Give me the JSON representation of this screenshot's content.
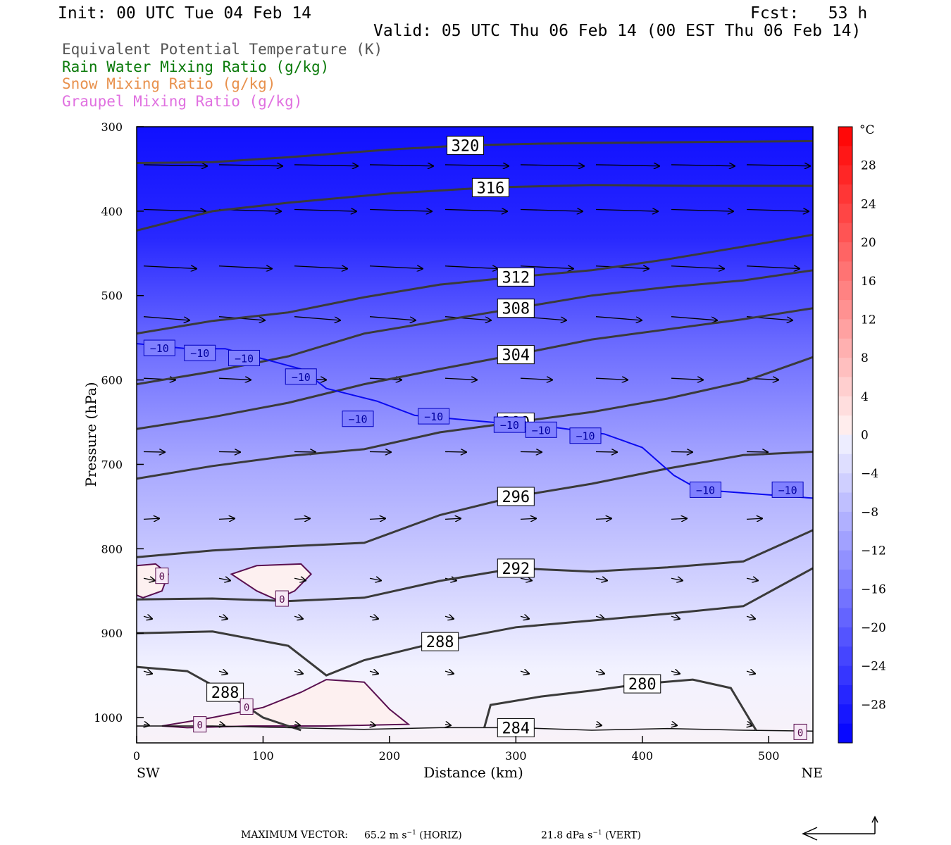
{
  "header": {
    "init": "Init: 00 UTC Tue 04 Feb 14",
    "fcst": "Fcst:   53 h",
    "valid": "Valid: 05 UTC Thu 06 Feb 14 (00 EST Thu 06 Feb 14)"
  },
  "legend": [
    {
      "label": "Equivalent Potential Temperature (K)",
      "color": "#555555"
    },
    {
      "label": "Rain Water Mixing Ratio (g/kg)",
      "color": "#0a7a0a"
    },
    {
      "label": "Snow Mixing Ratio (g/kg)",
      "color": "#e8914d"
    },
    {
      "label": "Graupel Mixing Ratio (g/kg)",
      "color": "#e070e0"
    }
  ],
  "chart_data": {
    "type": "contour",
    "xlabel": "Distance (km)",
    "ylabel": "Pressure (hPa)",
    "xlim": [
      0,
      535
    ],
    "ylim": [
      1030,
      300
    ],
    "x_ticks": [
      0,
      100,
      200,
      300,
      400,
      500
    ],
    "y_ticks": [
      300,
      400,
      500,
      600,
      700,
      800,
      900,
      1000
    ],
    "x_end_labels": {
      "left": "SW",
      "right": "NE"
    },
    "colorbar": {
      "unit": "°C",
      "tick_labels": [
        "28",
        "24",
        "20",
        "16",
        "12",
        "8",
        "4",
        "0",
        "−4",
        "−8",
        "−12",
        "−16",
        "−20",
        "−24",
        "−28"
      ],
      "tick_values": [
        28,
        24,
        20,
        16,
        12,
        8,
        4,
        0,
        -4,
        -8,
        -12,
        -16,
        -20,
        -24,
        -28
      ],
      "range": [
        -32,
        32
      ],
      "step": 2,
      "warm_color": "#ff0000",
      "cold_color": "#0000ff"
    },
    "theta_e_contours": [
      {
        "label": "320",
        "pts": [
          [
            0,
            343
          ],
          [
            60,
            342
          ],
          [
            120,
            336
          ],
          [
            200,
            327
          ],
          [
            260,
            322
          ],
          [
            320,
            320
          ],
          [
            380,
            319
          ],
          [
            450,
            318
          ],
          [
            535,
            317
          ]
        ]
      },
      {
        "label": "316",
        "pts": [
          [
            0,
            423
          ],
          [
            60,
            400
          ],
          [
            120,
            390
          ],
          [
            200,
            379
          ],
          [
            280,
            372
          ],
          [
            360,
            369
          ],
          [
            440,
            370
          ],
          [
            535,
            370
          ]
        ]
      },
      {
        "label": "312",
        "pts": [
          [
            0,
            545
          ],
          [
            60,
            530
          ],
          [
            120,
            520
          ],
          [
            180,
            502
          ],
          [
            240,
            487
          ],
          [
            300,
            478
          ],
          [
            360,
            470
          ],
          [
            420,
            457
          ],
          [
            480,
            442
          ],
          [
            535,
            428
          ]
        ]
      },
      {
        "label": "308",
        "pts": [
          [
            0,
            605
          ],
          [
            60,
            590
          ],
          [
            120,
            572
          ],
          [
            180,
            545
          ],
          [
            240,
            530
          ],
          [
            300,
            515
          ],
          [
            360,
            500
          ],
          [
            420,
            490
          ],
          [
            480,
            482
          ],
          [
            535,
            470
          ]
        ]
      },
      {
        "label": "304",
        "pts": [
          [
            0,
            658
          ],
          [
            60,
            644
          ],
          [
            120,
            627
          ],
          [
            180,
            605
          ],
          [
            240,
            587
          ],
          [
            300,
            570
          ],
          [
            360,
            552
          ],
          [
            420,
            540
          ],
          [
            480,
            528
          ],
          [
            535,
            515
          ]
        ]
      },
      {
        "label": "300",
        "pts": [
          [
            0,
            717
          ],
          [
            60,
            702
          ],
          [
            120,
            690
          ],
          [
            180,
            682
          ],
          [
            240,
            662
          ],
          [
            300,
            650
          ],
          [
            360,
            638
          ],
          [
            420,
            622
          ],
          [
            480,
            602
          ],
          [
            535,
            573
          ]
        ]
      },
      {
        "label": "296",
        "pts": [
          [
            0,
            810
          ],
          [
            60,
            802
          ],
          [
            120,
            797
          ],
          [
            180,
            793
          ],
          [
            240,
            760
          ],
          [
            300,
            738
          ],
          [
            360,
            723
          ],
          [
            420,
            705
          ],
          [
            480,
            689
          ],
          [
            535,
            685
          ]
        ]
      },
      {
        "label": "292",
        "pts": [
          [
            0,
            860
          ],
          [
            60,
            859
          ],
          [
            120,
            862
          ],
          [
            180,
            858
          ],
          [
            240,
            838
          ],
          [
            300,
            823
          ],
          [
            360,
            827
          ],
          [
            420,
            822
          ],
          [
            480,
            815
          ],
          [
            535,
            778
          ]
        ]
      },
      {
        "label": "288",
        "pts": [
          [
            0,
            900
          ],
          [
            60,
            898
          ],
          [
            120,
            915
          ],
          [
            150,
            950
          ],
          [
            180,
            932
          ],
          [
            240,
            910
          ],
          [
            300,
            893
          ],
          [
            360,
            885
          ],
          [
            420,
            877
          ],
          [
            480,
            868
          ],
          [
            535,
            823
          ]
        ]
      },
      {
        "label": "288",
        "pts": [
          [
            0,
            940
          ],
          [
            40,
            945
          ],
          [
            70,
            970
          ],
          [
            100,
            1000
          ],
          [
            130,
            1015
          ]
        ]
      },
      {
        "label": "284",
        "pts": [
          [
            0,
            1010
          ],
          [
            60,
            1010
          ],
          [
            120,
            1012
          ],
          [
            180,
            1014
          ],
          [
            240,
            1012
          ],
          [
            300,
            1012
          ],
          [
            360,
            1015
          ],
          [
            420,
            1013
          ],
          [
            480,
            1015
          ],
          [
            535,
            1016
          ]
        ]
      },
      {
        "label": "280",
        "pts": [
          [
            275,
            1012
          ],
          [
            280,
            985
          ],
          [
            320,
            975
          ],
          [
            360,
            968
          ],
          [
            400,
            960
          ],
          [
            440,
            955
          ],
          [
            470,
            965
          ],
          [
            490,
            1015
          ]
        ]
      }
    ],
    "temp_minus10": {
      "label": "−10",
      "pts": [
        [
          0,
          557
        ],
        [
          40,
          563
        ],
        [
          70,
          563
        ],
        [
          100,
          575
        ],
        [
          130,
          587
        ],
        [
          150,
          610
        ],
        [
          190,
          625
        ],
        [
          220,
          642
        ],
        [
          280,
          650
        ],
        [
          330,
          656
        ],
        [
          370,
          664
        ],
        [
          400,
          680
        ],
        [
          425,
          713
        ],
        [
          445,
          730
        ],
        [
          535,
          740
        ]
      ],
      "label_pts": [
        [
          18,
          562
        ],
        [
          50,
          568
        ],
        [
          85,
          574
        ],
        [
          130,
          596
        ],
        [
          175,
          646
        ],
        [
          235,
          643
        ],
        [
          295,
          653
        ],
        [
          320,
          659
        ],
        [
          355,
          666
        ],
        [
          450,
          730
        ],
        [
          515,
          730
        ]
      ]
    },
    "zero_c_labels": [
      [
        20,
        832
      ],
      [
        115,
        859
      ],
      [
        50,
        1008
      ],
      [
        87,
        987
      ],
      [
        525,
        1017
      ]
    ],
    "wind_vectors": {
      "max_horiz": "65.2",
      "max_vert": "21.8"
    }
  },
  "footer": {
    "max_label": "MAXIMUM VECTOR:",
    "horiz_text": "65.2 m s",
    "horiz_unit": "(HORIZ)",
    "vert_text": "21.8 dPa s",
    "vert_unit": "(VERT)"
  }
}
